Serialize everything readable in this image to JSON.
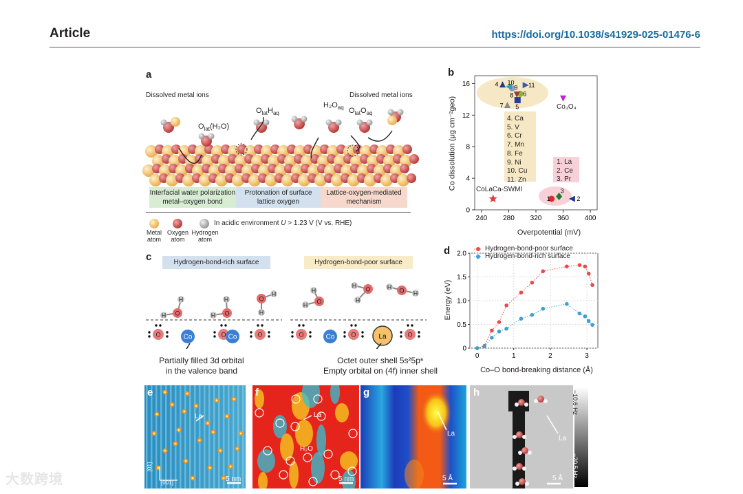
{
  "header": {
    "article": "Article",
    "doi": "https://doi.org/10.1038/s41929-025-01476-6"
  },
  "colors": {
    "metal": "#f5c26b",
    "oxygen": "#d24a4a",
    "hydrogen": "#b0b0b0",
    "link": "#1a6a9c",
    "poor": "#e84a4a",
    "rich": "#3f9fd0",
    "cluster": "#f6e8c4",
    "ref": "#f8d0d8"
  },
  "panel_a": {
    "label": "a",
    "left_title": "Dissolved metal ions",
    "right_title": "Dissolved metal ions",
    "species_olat_h2o": {
      "main": "O",
      "sub": "lat",
      "rest": "(H₂O)"
    },
    "species_olat_haq": {
      "o": "O",
      "lat": "lat",
      "h": "H",
      "aq": "aq"
    },
    "species_h2oaq": {
      "main": "H₂O",
      "sub": "aq"
    },
    "species_olatoaq": {
      "o": "O",
      "lat": "lat",
      "o2": "O",
      "aq": "aq"
    },
    "mechanisms": [
      {
        "line1": "Interfacial water polarization",
        "line2": "metal–oxygen bond"
      },
      {
        "line1": "Protonation of surface",
        "line2": "lattice oxygen"
      },
      {
        "line1": "Lattice-oxygen-mediated",
        "line2": "mechanism"
      }
    ],
    "legend": {
      "metal": "Metal atom",
      "oxygen": "Oxygen atom",
      "hydrogen": "Hydrogen atom",
      "condition_prefix": "In acidic environment",
      "condition_var": "U",
      "condition_suffix": "> 1.23 V (V vs. RHE)"
    }
  },
  "panel_b": {
    "label": "b",
    "labels_cluster": [
      "4. Ca",
      "5. V",
      "6. Cr",
      "7. Mn",
      "8. Fe",
      "9. Ni",
      "10. Cu",
      "11. Zn"
    ],
    "labels_ref": [
      "1. La",
      "2. Ce",
      "3. Pr"
    ],
    "swmi_label": "CoLaCa-SWMI",
    "co3o4_label": "Co₃O₄",
    "chart_data": {
      "type": "scatter",
      "xlabel": "Overpotential (mV)",
      "ylabel": "Co dissolution (μg cm⁻²geo)",
      "xlim": [
        230,
        410
      ],
      "ylim": [
        0,
        17
      ],
      "xticks": [
        240,
        280,
        320,
        360,
        400
      ],
      "yticks": [
        0,
        4,
        8,
        12,
        16
      ],
      "points": [
        {
          "id": "1",
          "x": 343,
          "y": 1.4,
          "marker": "circle",
          "color": "#d62e2e"
        },
        {
          "id": "2",
          "x": 373,
          "y": 1.4,
          "marker": "triangle-left",
          "color": "#1f3a8f"
        },
        {
          "id": "3",
          "x": 354,
          "y": 1.7,
          "marker": "diamond",
          "color": "#1e7a2e"
        },
        {
          "id": "4",
          "x": 271,
          "y": 15.9,
          "marker": "triangle-up",
          "color": "#1f3a8f"
        },
        {
          "id": "5",
          "x": 293,
          "y": 13.9,
          "marker": "square",
          "color": "#2a3c95"
        },
        {
          "id": "6",
          "x": 297,
          "y": 14.7,
          "marker": "circle",
          "color": "#8bb33a"
        },
        {
          "id": "7",
          "x": 278,
          "y": 13.3,
          "marker": "triangle-up",
          "color": "#888888"
        },
        {
          "id": "8",
          "x": 292,
          "y": 14.6,
          "marker": "triangle-down",
          "color": "#9b3c3c"
        },
        {
          "id": "9",
          "x": 285,
          "y": 15.4,
          "marker": "circle",
          "color": "#8aa0c8"
        },
        {
          "id": "10",
          "x": 280,
          "y": 15.6,
          "marker": "triangle-left",
          "color": "#2aa0b0"
        },
        {
          "id": "11",
          "x": 305,
          "y": 15.8,
          "marker": "triangle-right",
          "color": "#3a5aa0"
        },
        {
          "id": "Co3O4",
          "x": 360,
          "y": 14.1,
          "marker": "triangle-down",
          "color": "#c026d3"
        },
        {
          "id": "CoLaCa-SWMI",
          "x": 257,
          "y": 1.4,
          "marker": "star",
          "color": "#e23c3c"
        }
      ]
    }
  },
  "panel_c": {
    "label": "c",
    "rich_title": "Hydrogen-bond-rich surface",
    "poor_title": "Hydrogen-bond-poor surface",
    "rich_caption": [
      "Partially filled 3d orbital",
      "in the valence band"
    ],
    "poor_caption": [
      "Octet outer shell 5s²5p⁶",
      "Empty orbital on (4f) inner shell"
    ],
    "atom_labels": {
      "co": "Co",
      "la": "La",
      "o": "O",
      "h": "H"
    }
  },
  "panel_d": {
    "label": "d",
    "chart_data": {
      "type": "line",
      "xlabel": "Co–O bond-breaking distance (Å)",
      "ylabel": "Energy (eV)",
      "xlim": [
        -0.2,
        3.3
      ],
      "ylim": [
        0,
        2.0
      ],
      "xticks": [
        0,
        1,
        2,
        3
      ],
      "yticks": [
        0,
        0.5,
        1.0,
        1.5,
        2.0
      ],
      "legend_position": "top-left",
      "series": [
        {
          "name": "Hydrogen-bond-poor surface",
          "color": "#e84a4a",
          "x": [
            0,
            0.2,
            0.4,
            0.6,
            0.8,
            1.2,
            1.5,
            1.8,
            2.45,
            2.8,
            2.95,
            3.05,
            3.15
          ],
          "y": [
            0,
            0.05,
            0.37,
            0.55,
            0.9,
            1.17,
            1.38,
            1.62,
            1.72,
            1.75,
            1.72,
            1.57,
            1.33
          ]
        },
        {
          "name": "Hydrogen-bond-rich surface",
          "color": "#3f9fd0",
          "x": [
            0,
            0.2,
            0.4,
            0.6,
            0.8,
            1.2,
            1.5,
            1.8,
            2.45,
            2.8,
            2.95,
            3.05,
            3.15
          ],
          "y": [
            0,
            0.04,
            0.22,
            0.35,
            0.41,
            0.62,
            0.7,
            0.83,
            0.93,
            0.73,
            0.67,
            0.57,
            0.49
          ]
        }
      ]
    }
  },
  "panel_e": {
    "label": "e",
    "la": "La",
    "scale": "5 nm",
    "axis_v": "[01]",
    "axis_h": "[001]"
  },
  "panel_f": {
    "label": "f",
    "la": "La",
    "h2o": "H₂O",
    "scale": "5 nm"
  },
  "panel_g": {
    "label": "g",
    "la": "La",
    "scale": "5 Å"
  },
  "panel_h": {
    "label": "h",
    "la": "La",
    "scale": "5 Å",
    "cb_top": "−10.6 Hz",
    "cb_bottom": "−20.5 Hz"
  },
  "watermark": "大数跨境"
}
